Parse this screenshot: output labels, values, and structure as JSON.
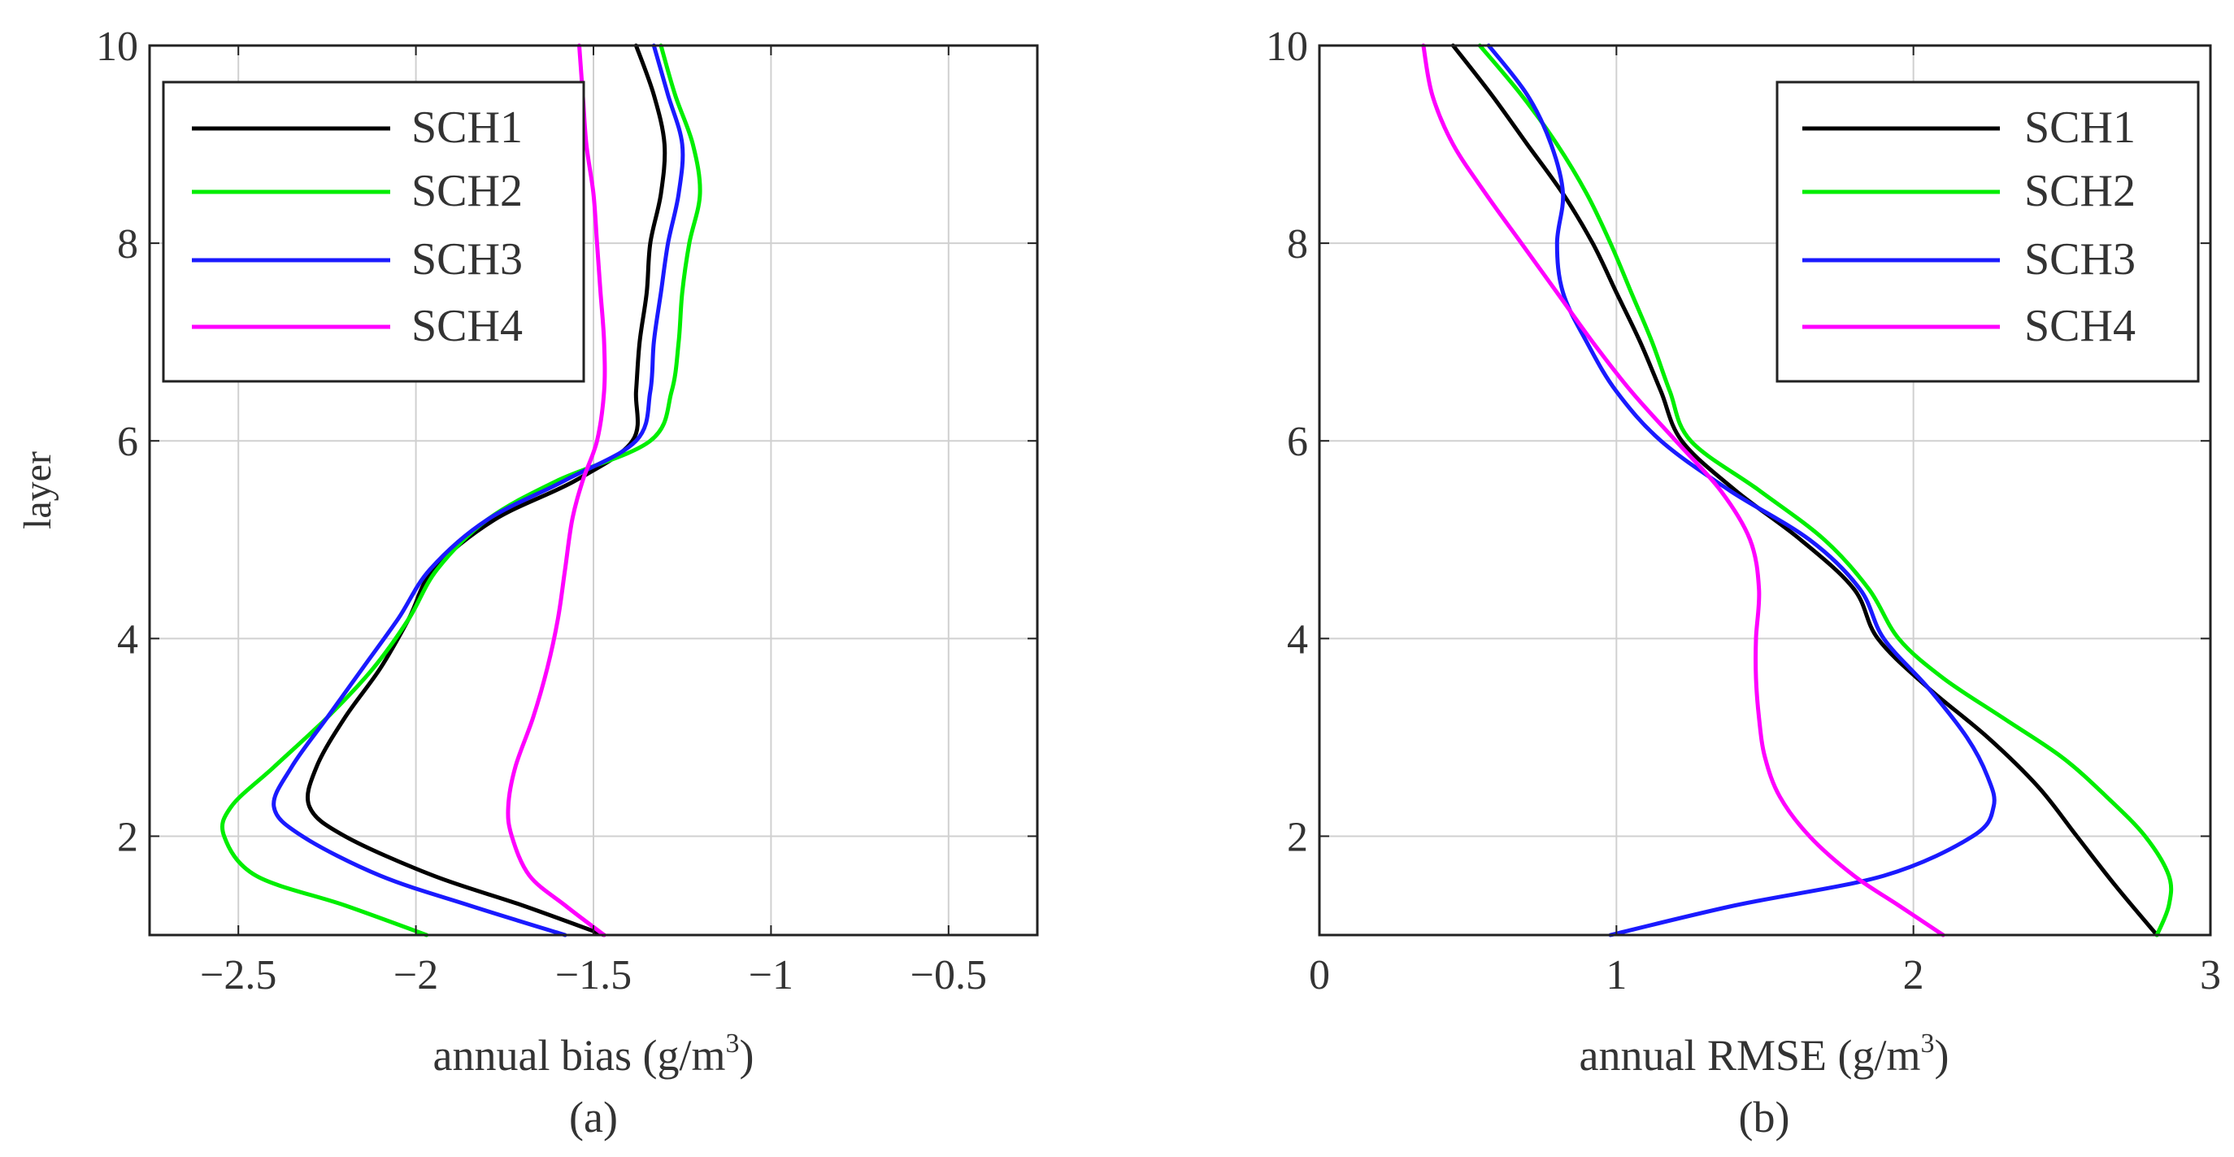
{
  "panels": [
    {
      "caption": "(a)",
      "chart_data": {
        "type": "line",
        "title": "",
        "xlabel": "annual bias (g/m",
        "xlabel_sup": "3",
        "xlabel_close": ")",
        "ylabel": "layer",
        "xlim": [
          -2.75,
          -0.25
        ],
        "ylim": [
          1,
          10
        ],
        "xticks": [
          -2.5,
          -2,
          -1.5,
          -1,
          -0.5
        ],
        "xtick_labels": [
          "−2.5",
          "−2",
          "−1.5",
          "−1",
          "−0.5"
        ],
        "yticks": [
          2,
          4,
          6,
          8,
          10
        ],
        "ytick_labels": [
          "2",
          "4",
          "6",
          "8",
          "10"
        ],
        "grid": true,
        "legend_position": "top-left",
        "series": [
          {
            "name": "SCH1",
            "color": "#000000",
            "y": [
              1,
              1.3,
              1.6,
              2,
              2.3,
              2.7,
              3.2,
              3.7,
              4.2,
              4.7,
              5.2,
              5.6,
              6,
              6.5,
              7,
              7.5,
              8,
              8.5,
              9,
              9.5,
              10
            ],
            "x": [
              -1.47,
              -1.7,
              -1.95,
              -2.2,
              -2.3,
              -2.28,
              -2.2,
              -2.1,
              -2.02,
              -1.95,
              -1.78,
              -1.55,
              -1.39,
              -1.38,
              -1.37,
              -1.35,
              -1.34,
              -1.31,
              -1.3,
              -1.33,
              -1.38
            ]
          },
          {
            "name": "SCH2",
            "color": "#00ee00",
            "y": [
              1,
              1.3,
              1.6,
              2,
              2.3,
              2.7,
              3.2,
              3.7,
              4.2,
              4.7,
              5.2,
              5.6,
              6,
              6.5,
              7,
              7.5,
              8,
              8.5,
              9,
              9.5,
              10
            ],
            "x": [
              -1.97,
              -2.2,
              -2.45,
              -2.54,
              -2.52,
              -2.4,
              -2.25,
              -2.12,
              -2.02,
              -1.94,
              -1.8,
              -1.6,
              -1.34,
              -1.28,
              -1.26,
              -1.25,
              -1.23,
              -1.2,
              -1.22,
              -1.27,
              -1.31
            ]
          },
          {
            "name": "SCH3",
            "color": "#1a1aff",
            "y": [
              1,
              1.3,
              1.6,
              2,
              2.3,
              2.7,
              3.2,
              3.7,
              4.2,
              4.7,
              5.2,
              5.6,
              6,
              6.5,
              7,
              7.5,
              8,
              8.5,
              9,
              9.5,
              10
            ],
            "x": [
              -1.58,
              -1.85,
              -2.1,
              -2.32,
              -2.4,
              -2.35,
              -2.25,
              -2.15,
              -2.05,
              -1.96,
              -1.8,
              -1.58,
              -1.38,
              -1.34,
              -1.33,
              -1.31,
              -1.29,
              -1.26,
              -1.25,
              -1.29,
              -1.33
            ]
          },
          {
            "name": "SCH4",
            "color": "#ff00ff",
            "y": [
              1,
              1.3,
              1.6,
              2,
              2.3,
              2.7,
              3.2,
              3.7,
              4.2,
              4.7,
              5.2,
              5.6,
              6,
              6.5,
              7,
              7.5,
              8,
              8.5,
              9,
              9.5,
              10
            ],
            "x": [
              -1.47,
              -1.58,
              -1.68,
              -1.73,
              -1.74,
              -1.72,
              -1.67,
              -1.63,
              -1.6,
              -1.58,
              -1.56,
              -1.53,
              -1.49,
              -1.47,
              -1.47,
              -1.48,
              -1.49,
              -1.5,
              -1.52,
              -1.53,
              -1.54
            ]
          }
        ]
      }
    },
    {
      "caption": "(b)",
      "chart_data": {
        "type": "line",
        "title": "",
        "xlabel": "annual RMSE (g/m",
        "xlabel_sup": "3",
        "xlabel_close": ")",
        "ylabel": "",
        "xlim": [
          0,
          3
        ],
        "ylim": [
          1,
          10
        ],
        "xticks": [
          0,
          1,
          2,
          3
        ],
        "xtick_labels": [
          "0",
          "1",
          "2",
          "3"
        ],
        "yticks": [
          2,
          4,
          6,
          8,
          10
        ],
        "ytick_labels": [
          "2",
          "4",
          "6",
          "8",
          "10"
        ],
        "grid": true,
        "legend_position": "top-right",
        "series": [
          {
            "name": "SCH1",
            "color": "#000000",
            "y": [
              1,
              1.5,
              2,
              2.5,
              3,
              3.5,
              4,
              4.5,
              5,
              5.5,
              6,
              6.5,
              7,
              7.5,
              8,
              8.5,
              9,
              9.5,
              10
            ],
            "x": [
              2.82,
              2.68,
              2.55,
              2.42,
              2.25,
              2.05,
              1.88,
              1.8,
              1.62,
              1.4,
              1.22,
              1.15,
              1.08,
              1.0,
              0.92,
              0.82,
              0.7,
              0.58,
              0.45
            ]
          },
          {
            "name": "SCH2",
            "color": "#00ee00",
            "y": [
              1,
              1.3,
              1.6,
              2,
              2.4,
              2.8,
              3.2,
              3.6,
              4,
              4.5,
              5,
              5.5,
              6,
              6.5,
              7,
              7.5,
              8,
              8.5,
              9,
              9.5,
              10
            ],
            "x": [
              2.82,
              2.86,
              2.86,
              2.78,
              2.65,
              2.5,
              2.3,
              2.1,
              1.95,
              1.85,
              1.7,
              1.48,
              1.25,
              1.18,
              1.12,
              1.05,
              0.98,
              0.9,
              0.8,
              0.68,
              0.54
            ]
          },
          {
            "name": "SCH3",
            "color": "#1a1aff",
            "y": [
              1,
              1.3,
              1.6,
              2,
              2.3,
              2.6,
              3,
              3.5,
              4,
              4.5,
              5,
              5.5,
              6,
              6.5,
              7,
              7.5,
              8,
              8.5,
              9,
              9.5,
              10
            ],
            "x": [
              0.98,
              1.4,
              1.9,
              2.2,
              2.27,
              2.25,
              2.18,
              2.05,
              1.9,
              1.82,
              1.65,
              1.38,
              1.15,
              1.0,
              0.9,
              0.82,
              0.8,
              0.82,
              0.78,
              0.7,
              0.57
            ]
          },
          {
            "name": "SCH4",
            "color": "#ff00ff",
            "y": [
              1,
              1.3,
              1.6,
              2,
              2.4,
              2.8,
              3.2,
              3.6,
              4,
              4.5,
              5,
              5.5,
              6,
              6.5,
              7,
              7.5,
              8,
              8.5,
              9,
              9.5,
              10
            ],
            "x": [
              2.1,
              1.95,
              1.8,
              1.65,
              1.55,
              1.5,
              1.48,
              1.47,
              1.47,
              1.48,
              1.45,
              1.35,
              1.2,
              1.05,
              0.92,
              0.8,
              0.68,
              0.56,
              0.45,
              0.38,
              0.35
            ]
          }
        ]
      }
    }
  ]
}
